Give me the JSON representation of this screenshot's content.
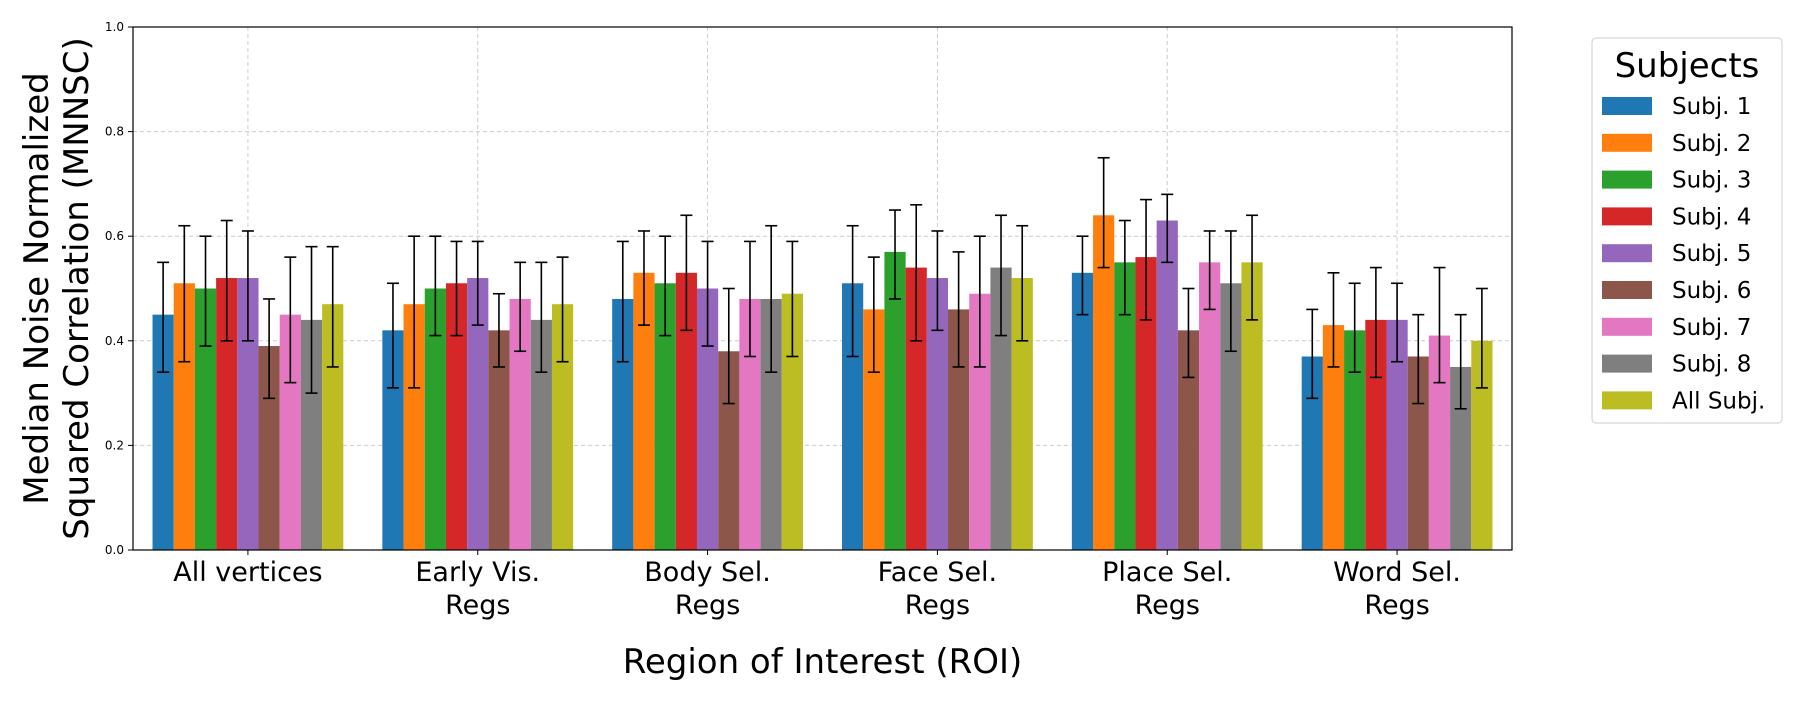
{
  "chart_data": {
    "type": "bar",
    "title": "",
    "xlabel": "Region of Interest (ROI)",
    "ylabel_lines": [
      "Median Noise Normalized",
      "Squared Correlation (MNNSC)"
    ],
    "ylim": [
      0,
      1.0
    ],
    "yticks": [
      "0.0",
      "0.2",
      "0.4",
      "0.6",
      "0.8",
      "1.0"
    ],
    "grid": true,
    "legend": {
      "title": "Subjects",
      "placement": "outside-right"
    },
    "categories": [
      [
        "All vertices"
      ],
      [
        "Early Vis.",
        "Regs"
      ],
      [
        "Body Sel.",
        "Regs"
      ],
      [
        "Face Sel.",
        "Regs"
      ],
      [
        "Place Sel.",
        "Regs"
      ],
      [
        "Word Sel.",
        "Regs"
      ]
    ],
    "series": [
      {
        "name": "Subj. 1",
        "color": "#1f77b4",
        "values": [
          0.45,
          0.42,
          0.48,
          0.51,
          0.53,
          0.37
        ],
        "err_low": [
          0.34,
          0.31,
          0.36,
          0.37,
          0.45,
          0.29
        ],
        "err_high": [
          0.55,
          0.51,
          0.59,
          0.62,
          0.6,
          0.46
        ]
      },
      {
        "name": "Subj. 2",
        "color": "#ff7f0e",
        "values": [
          0.51,
          0.47,
          0.53,
          0.46,
          0.64,
          0.43
        ],
        "err_low": [
          0.36,
          0.31,
          0.43,
          0.34,
          0.54,
          0.35
        ],
        "err_high": [
          0.62,
          0.6,
          0.61,
          0.56,
          0.75,
          0.53
        ]
      },
      {
        "name": "Subj. 3",
        "color": "#2ca02c",
        "values": [
          0.5,
          0.5,
          0.51,
          0.57,
          0.55,
          0.42
        ],
        "err_low": [
          0.39,
          0.41,
          0.41,
          0.48,
          0.45,
          0.34
        ],
        "err_high": [
          0.6,
          0.6,
          0.6,
          0.65,
          0.63,
          0.51
        ]
      },
      {
        "name": "Subj. 4",
        "color": "#d62728",
        "values": [
          0.52,
          0.51,
          0.53,
          0.54,
          0.56,
          0.44
        ],
        "err_low": [
          0.4,
          0.41,
          0.42,
          0.4,
          0.44,
          0.33
        ],
        "err_high": [
          0.63,
          0.59,
          0.64,
          0.66,
          0.67,
          0.54
        ]
      },
      {
        "name": "Subj. 5",
        "color": "#9467bd",
        "values": [
          0.52,
          0.52,
          0.5,
          0.52,
          0.63,
          0.44
        ],
        "err_low": [
          0.4,
          0.43,
          0.39,
          0.42,
          0.55,
          0.36
        ],
        "err_high": [
          0.61,
          0.59,
          0.59,
          0.61,
          0.68,
          0.51
        ]
      },
      {
        "name": "Subj. 6",
        "color": "#8c564b",
        "values": [
          0.39,
          0.42,
          0.38,
          0.46,
          0.42,
          0.37
        ],
        "err_low": [
          0.29,
          0.35,
          0.28,
          0.35,
          0.33,
          0.28
        ],
        "err_high": [
          0.48,
          0.49,
          0.5,
          0.57,
          0.5,
          0.45
        ]
      },
      {
        "name": "Subj. 7",
        "color": "#e377c2",
        "values": [
          0.45,
          0.48,
          0.48,
          0.49,
          0.55,
          0.41
        ],
        "err_low": [
          0.32,
          0.38,
          0.37,
          0.35,
          0.46,
          0.32
        ],
        "err_high": [
          0.56,
          0.55,
          0.59,
          0.6,
          0.61,
          0.54
        ]
      },
      {
        "name": "Subj. 8",
        "color": "#7f7f7f",
        "values": [
          0.44,
          0.44,
          0.48,
          0.54,
          0.51,
          0.35
        ],
        "err_low": [
          0.3,
          0.34,
          0.34,
          0.41,
          0.38,
          0.27
        ],
        "err_high": [
          0.58,
          0.55,
          0.62,
          0.64,
          0.61,
          0.45
        ]
      },
      {
        "name": "All Subj.",
        "color": "#bcbd22",
        "values": [
          0.47,
          0.47,
          0.49,
          0.52,
          0.55,
          0.4
        ],
        "err_low": [
          0.35,
          0.36,
          0.37,
          0.4,
          0.44,
          0.31
        ],
        "err_high": [
          0.58,
          0.56,
          0.59,
          0.62,
          0.64,
          0.5
        ]
      }
    ]
  }
}
